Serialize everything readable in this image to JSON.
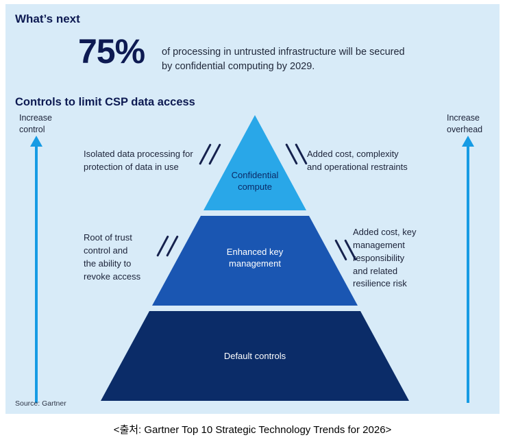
{
  "colors": {
    "panel_background": "#D8EBF8",
    "heading_navy": "#0D1A52",
    "arrow_blue": "#169BE4",
    "tier_top_blue": "#29A7E8",
    "tier_middle_blue": "#1A56B2",
    "tier_bottom_navy": "#0B2C68"
  },
  "header": {
    "whats_next": "What’s next",
    "stat_value": "75%",
    "stat_description": "of processing in untrusted infrastructure will be secured\nby confidential computing by 2029.",
    "section_title": "Controls to limit CSP data access"
  },
  "axes": {
    "left_label": "Increase\ncontrol",
    "right_label": "Increase\noverhead"
  },
  "pyramid": {
    "tiers": [
      {
        "label": "Confidential\ncompute",
        "color": "#29A7E8",
        "left_note": "Isolated data processing for\nprotection of data in use",
        "right_note": "Added cost, complexity\nand operational restraints"
      },
      {
        "label": "Enhanced key\nmanagement",
        "color": "#1A56B2",
        "left_note": "Root of trust\ncontrol and\nthe ability to\nrevoke access",
        "right_note": "Added cost, key\nmanagement\nresponsibility\nand related\nresilience risk"
      },
      {
        "label": "Default controls",
        "color": "#0B2C68"
      }
    ]
  },
  "source": "Source: Gartner",
  "caption": "<출처: Gartner Top 10 Strategic Technology Trends for 2026>"
}
